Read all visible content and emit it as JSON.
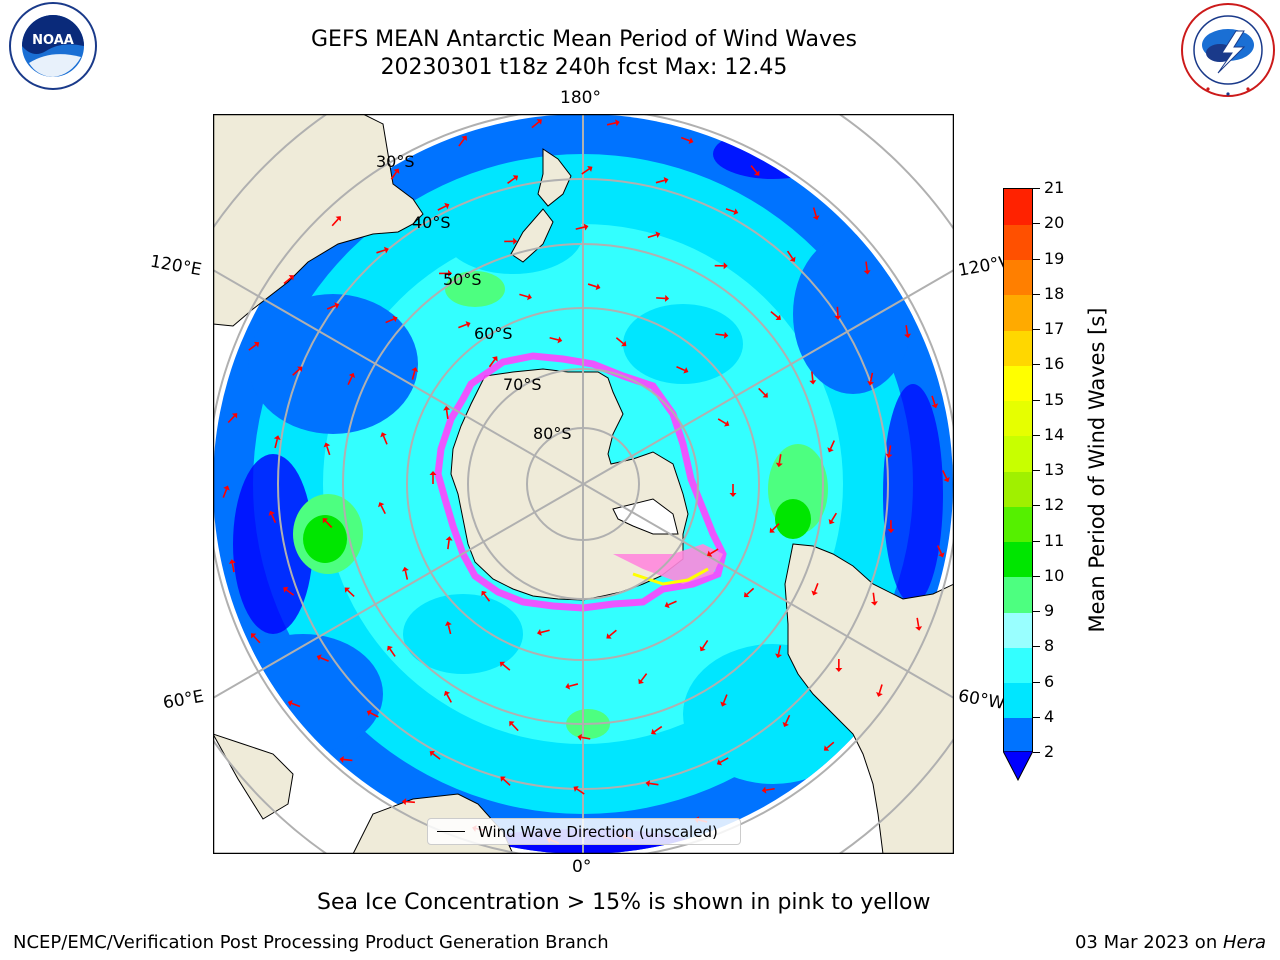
{
  "header": {
    "title_line1": "GEFS MEAN Antarctic Mean Period of Wind Waves",
    "title_line2": "20230301 t18z 240h fcst   Max: 12.45"
  },
  "logos": {
    "left": "noaa-logo",
    "left_text": "NOAA",
    "left_ring_text": "NATIONAL OCEANIC AND ATMOSPHERIC ADMINISTRATION · U.S. DEPARTMENT OF COMMERCE",
    "right": "national-weather-service-logo",
    "right_ring_text": "NATIONAL WEATHER SERVICE"
  },
  "map": {
    "longitude_labels": {
      "top": "180°",
      "bottom": "0°",
      "upper_left": "120°E",
      "upper_right": "120°W",
      "lower_left": "60°E",
      "lower_right": "60°W"
    },
    "latitude_labels": [
      "30°S",
      "40°S",
      "50°S",
      "60°S",
      "70°S",
      "80°S"
    ],
    "legend_label": "Wind Wave Direction (unscaled)",
    "arrow_color": "#ff0000",
    "land_color": "#efebd9",
    "sea_ice_colors": [
      "#ff66ff",
      "#ff0080",
      "#ffff00"
    ]
  },
  "colorbar": {
    "label": "Mean Period of Wind Waves [s]",
    "ticks": [
      "2",
      "4",
      "6",
      "8",
      "9",
      "10",
      "11",
      "12",
      "13",
      "14",
      "15",
      "16",
      "17",
      "18",
      "19",
      "20",
      "21"
    ],
    "colors": [
      "#0073ff",
      "#00e6ff",
      "#33ffff",
      "#99ffff",
      "#4dff80",
      "#00e600",
      "#55f000",
      "#a0f000",
      "#c8ff00",
      "#e6ff00",
      "#ffff00",
      "#ffd700",
      "#ffaa00",
      "#ff7f00",
      "#ff5000",
      "#ff2200",
      "#ff0000"
    ],
    "extend_color": "#0000ff"
  },
  "note": "Sea Ice Concentration > 15% is shown in pink to yellow",
  "footer": {
    "left": "NCEP/EMC/Verification Post Processing Product Generation Branch",
    "right_date": "03 Mar 2023 on ",
    "right_host": "Hera"
  }
}
